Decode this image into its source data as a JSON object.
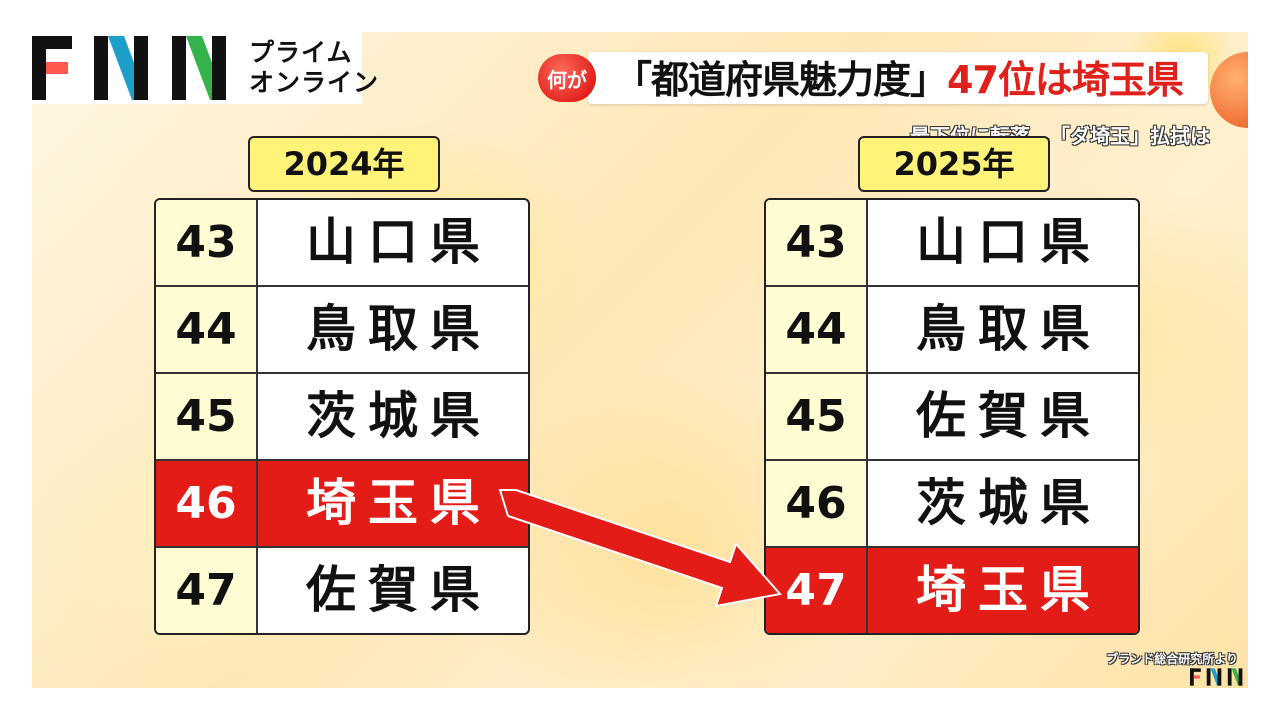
{
  "logo": {
    "brand": "FNN",
    "subtitle_line1": "プライム",
    "subtitle_line2": "オンライン"
  },
  "headline": {
    "tag": "何が",
    "main_part1": "「都道府県魅力度」",
    "main_part2": "47位は埼玉県",
    "subline": "最下位に転落…「ダ埼玉」払拭は"
  },
  "ranking_2024": {
    "year_label": "2024年",
    "rows": [
      {
        "rank": "43",
        "prefecture": "山口県",
        "highlight": false
      },
      {
        "rank": "44",
        "prefecture": "鳥取県",
        "highlight": false
      },
      {
        "rank": "45",
        "prefecture": "茨城県",
        "highlight": false
      },
      {
        "rank": "46",
        "prefecture": "埼玉県",
        "highlight": true
      },
      {
        "rank": "47",
        "prefecture": "佐賀県",
        "highlight": false
      }
    ]
  },
  "ranking_2025": {
    "year_label": "2025年",
    "rows": [
      {
        "rank": "43",
        "prefecture": "山口県",
        "highlight": false
      },
      {
        "rank": "44",
        "prefecture": "鳥取県",
        "highlight": false
      },
      {
        "rank": "45",
        "prefecture": "佐賀県",
        "highlight": false
      },
      {
        "rank": "46",
        "prefecture": "茨城県",
        "highlight": false
      },
      {
        "rank": "47",
        "prefecture": "埼玉県",
        "highlight": true
      }
    ]
  },
  "footer": {
    "source": "ブランド総合研究所より",
    "brand_small": "FNN"
  },
  "colors": {
    "highlight_red": "#e31c17",
    "year_yellow": "#fff37a",
    "rank_cell": "#fffbd2"
  },
  "icons": [
    "fnn-logo",
    "arrow-right-down-icon"
  ]
}
